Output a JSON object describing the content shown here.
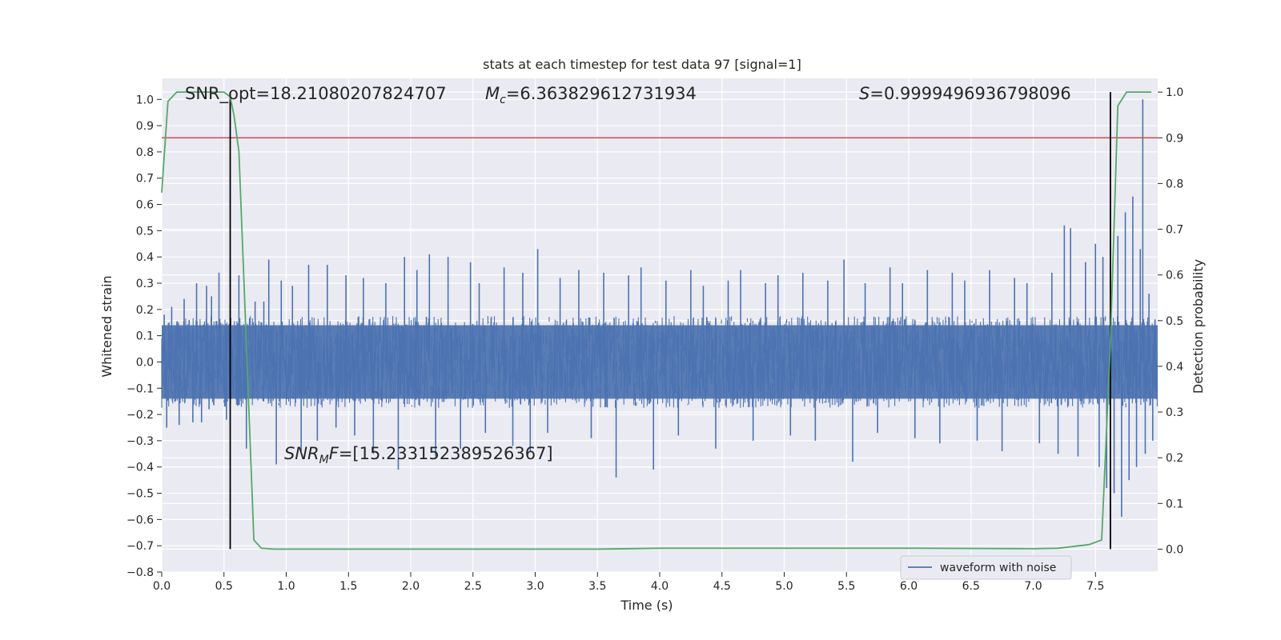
{
  "chart_data": {
    "type": "line",
    "title": "stats at each timestep for test data 97 [signal=1]",
    "xlabel": "Time (s)",
    "ylabel": "Whitened strain",
    "y2label": "Detection probability",
    "xlim": [
      0.0,
      8.0
    ],
    "ylim": [
      -0.8,
      1.08
    ],
    "y2lim": [
      -0.05,
      1.03
    ],
    "x_ticks": [
      0.0,
      0.5,
      1.0,
      1.5,
      2.0,
      2.5,
      3.0,
      3.5,
      4.0,
      4.5,
      5.0,
      5.5,
      6.0,
      6.5,
      7.0,
      7.5
    ],
    "x_tick_labels": [
      "0.0",
      "0.5",
      "1.0",
      "1.5",
      "2.0",
      "2.5",
      "3.0",
      "3.5",
      "4.0",
      "4.5",
      "5.0",
      "5.5",
      "6.0",
      "6.5",
      "7.0",
      "7.5"
    ],
    "y_ticks": [
      1.0,
      0.9,
      0.8,
      0.7,
      0.6,
      0.5,
      0.4,
      0.3,
      0.2,
      0.1,
      0.0,
      -0.1,
      -0.2,
      -0.3,
      -0.4,
      -0.5,
      -0.6,
      -0.7,
      -0.8
    ],
    "y_tick_labels": [
      "1.0",
      "0.9",
      "0.8",
      "0.7",
      "0.6",
      "0.5",
      "0.4",
      "0.3",
      "0.2",
      "0.1",
      "0.0",
      "−0.1",
      "−0.2",
      "−0.3",
      "−0.4",
      "−0.5",
      "−0.6",
      "−0.7",
      "−0.8"
    ],
    "y2_ticks": [
      1.0,
      0.9,
      0.8,
      0.7,
      0.6,
      0.5,
      0.4,
      0.3,
      0.2,
      0.1,
      0.0
    ],
    "y2_tick_labels": [
      "1.0",
      "0.9",
      "0.8",
      "0.7",
      "0.6",
      "0.5",
      "0.4",
      "0.3",
      "0.2",
      "0.1",
      "0.0"
    ],
    "legend": {
      "label": "waveform with noise",
      "position": "lower-right"
    },
    "annotations": {
      "snr_opt": "SNR_opt=18.21080207824707",
      "mc_symbol": "M",
      "mc_sub": "c",
      "mc_value": "=6.363829612731934",
      "s_symbol": "S",
      "s_value": "=0.9999496936798096",
      "snr_mf_symbol": "SNR",
      "snr_mf_sub": "M",
      "snr_mf_f": "F",
      "snr_mf_value": "=[15.233152389526367]"
    },
    "waveform": {
      "name": "waveform with noise",
      "color": "#4c72b0",
      "duration_s": 8.0,
      "n_samples": 2000,
      "core_amplitude": 0.14,
      "core_center": 0.0,
      "spikes": [
        {
          "t": 0.02,
          "v": 0.18
        },
        {
          "t": 0.04,
          "v": -0.25
        },
        {
          "t": 0.08,
          "v": 0.21
        },
        {
          "t": 0.14,
          "v": -0.24
        },
        {
          "t": 0.18,
          "v": 0.24
        },
        {
          "t": 0.22,
          "v": 0.16
        },
        {
          "t": 0.25,
          "v": -0.23
        },
        {
          "t": 0.28,
          "v": 0.3
        },
        {
          "t": 0.32,
          "v": -0.23
        },
        {
          "t": 0.36,
          "v": 0.29
        },
        {
          "t": 0.38,
          "v": -0.18
        },
        {
          "t": 0.4,
          "v": 0.25
        },
        {
          "t": 0.46,
          "v": 0.34
        },
        {
          "t": 0.52,
          "v": -0.22
        },
        {
          "t": 0.55,
          "v": 0.39
        },
        {
          "t": 0.62,
          "v": 0.33
        },
        {
          "t": 0.68,
          "v": -0.33
        },
        {
          "t": 0.75,
          "v": 0.23
        },
        {
          "t": 0.82,
          "v": 0.23
        },
        {
          "t": 0.86,
          "v": 0.39
        },
        {
          "t": 0.92,
          "v": -0.39
        },
        {
          "t": 0.96,
          "v": 0.31
        },
        {
          "t": 1.05,
          "v": 0.29
        },
        {
          "t": 1.12,
          "v": -0.34
        },
        {
          "t": 1.18,
          "v": 0.37
        },
        {
          "t": 1.25,
          "v": -0.3
        },
        {
          "t": 1.33,
          "v": 0.37
        },
        {
          "t": 1.4,
          "v": -0.25
        },
        {
          "t": 1.48,
          "v": 0.33
        },
        {
          "t": 1.55,
          "v": -0.28
        },
        {
          "t": 1.62,
          "v": 0.32
        },
        {
          "t": 1.7,
          "v": -0.35
        },
        {
          "t": 1.8,
          "v": 0.3
        },
        {
          "t": 1.9,
          "v": -0.41
        },
        {
          "t": 1.95,
          "v": 0.4
        },
        {
          "t": 2.05,
          "v": 0.35
        },
        {
          "t": 2.15,
          "v": 0.41
        },
        {
          "t": 2.2,
          "v": -0.36
        },
        {
          "t": 2.3,
          "v": 0.4
        },
        {
          "t": 2.4,
          "v": -0.33
        },
        {
          "t": 2.48,
          "v": 0.38
        },
        {
          "t": 2.55,
          "v": 0.3
        },
        {
          "t": 2.6,
          "v": -0.27
        },
        {
          "t": 2.75,
          "v": 0.36
        },
        {
          "t": 2.82,
          "v": -0.32
        },
        {
          "t": 2.9,
          "v": 0.34
        },
        {
          "t": 2.96,
          "v": -0.34
        },
        {
          "t": 3.02,
          "v": 0.43
        },
        {
          "t": 3.1,
          "v": -0.27
        },
        {
          "t": 3.2,
          "v": 0.32
        },
        {
          "t": 3.35,
          "v": 0.35
        },
        {
          "t": 3.45,
          "v": -0.29
        },
        {
          "t": 3.55,
          "v": 0.34
        },
        {
          "t": 3.65,
          "v": -0.44
        },
        {
          "t": 3.75,
          "v": 0.33
        },
        {
          "t": 3.85,
          "v": 0.36
        },
        {
          "t": 3.95,
          "v": -0.41
        },
        {
          "t": 4.05,
          "v": 0.31
        },
        {
          "t": 4.15,
          "v": -0.28
        },
        {
          "t": 4.25,
          "v": 0.35
        },
        {
          "t": 4.35,
          "v": 0.29
        },
        {
          "t": 4.45,
          "v": -0.33
        },
        {
          "t": 4.55,
          "v": 0.31
        },
        {
          "t": 4.65,
          "v": 0.35
        },
        {
          "t": 4.75,
          "v": -0.3
        },
        {
          "t": 4.85,
          "v": 0.3
        },
        {
          "t": 4.95,
          "v": 0.33
        },
        {
          "t": 5.05,
          "v": -0.28
        },
        {
          "t": 5.15,
          "v": 0.34
        },
        {
          "t": 5.25,
          "v": -0.3
        },
        {
          "t": 5.35,
          "v": 0.31
        },
        {
          "t": 5.48,
          "v": 0.39
        },
        {
          "t": 5.55,
          "v": -0.38
        },
        {
          "t": 5.65,
          "v": 0.3
        },
        {
          "t": 5.75,
          "v": -0.27
        },
        {
          "t": 5.85,
          "v": 0.36
        },
        {
          "t": 5.95,
          "v": 0.3
        },
        {
          "t": 6.05,
          "v": -0.29
        },
        {
          "t": 6.15,
          "v": 0.35
        },
        {
          "t": 6.25,
          "v": -0.31
        },
        {
          "t": 6.35,
          "v": 0.34
        },
        {
          "t": 6.45,
          "v": 0.31
        },
        {
          "t": 6.55,
          "v": -0.3
        },
        {
          "t": 6.65,
          "v": 0.35
        },
        {
          "t": 6.75,
          "v": -0.34
        },
        {
          "t": 6.85,
          "v": 0.32
        },
        {
          "t": 6.95,
          "v": 0.3
        },
        {
          "t": 7.05,
          "v": -0.31
        },
        {
          "t": 7.15,
          "v": 0.34
        },
        {
          "t": 7.2,
          "v": -0.35
        },
        {
          "t": 7.25,
          "v": 0.52
        },
        {
          "t": 7.3,
          "v": 0.51
        },
        {
          "t": 7.36,
          "v": -0.36
        },
        {
          "t": 7.42,
          "v": 0.38
        },
        {
          "t": 7.5,
          "v": 0.45
        },
        {
          "t": 7.53,
          "v": -0.4
        },
        {
          "t": 7.56,
          "v": 0.4
        },
        {
          "t": 7.59,
          "v": -0.48
        },
        {
          "t": 7.62,
          "v": 0.52
        },
        {
          "t": 7.65,
          "v": -0.5
        },
        {
          "t": 7.68,
          "v": 0.48
        },
        {
          "t": 7.71,
          "v": -0.59
        },
        {
          "t": 7.74,
          "v": 0.57
        },
        {
          "t": 7.77,
          "v": -0.45
        },
        {
          "t": 7.8,
          "v": 0.63
        },
        {
          "t": 7.83,
          "v": -0.4
        },
        {
          "t": 7.86,
          "v": 0.43
        },
        {
          "t": 7.88,
          "v": 1.0
        },
        {
          "t": 7.9,
          "v": -0.35
        },
        {
          "t": 7.93,
          "v": 0.26
        },
        {
          "t": 7.96,
          "v": -0.3
        }
      ]
    },
    "detection_probability": {
      "color": "#55a868",
      "x": [
        0.0,
        0.05,
        0.12,
        0.3,
        0.5,
        0.55,
        0.58,
        0.62,
        0.68,
        0.74,
        0.8,
        0.9,
        1.5,
        3.5,
        4.0,
        5.0,
        6.0,
        7.0,
        7.2,
        7.45,
        7.55,
        7.62,
        7.68,
        7.75,
        7.82,
        7.95
      ],
      "y": [
        0.78,
        0.98,
        1.0,
        1.0,
        1.0,
        0.99,
        0.95,
        0.87,
        0.45,
        0.02,
        0.002,
        0.0,
        0.0,
        0.0,
        0.002,
        0.002,
        0.002,
        0.001,
        0.002,
        0.01,
        0.02,
        0.45,
        0.97,
        1.0,
        1.0,
        1.0
      ]
    },
    "threshold": {
      "color": "#c44e52",
      "y2_value": 0.9
    },
    "markers": {
      "color": "#000000",
      "x": [
        0.55,
        7.62
      ],
      "y2_range": [
        0.0,
        1.0
      ]
    }
  }
}
